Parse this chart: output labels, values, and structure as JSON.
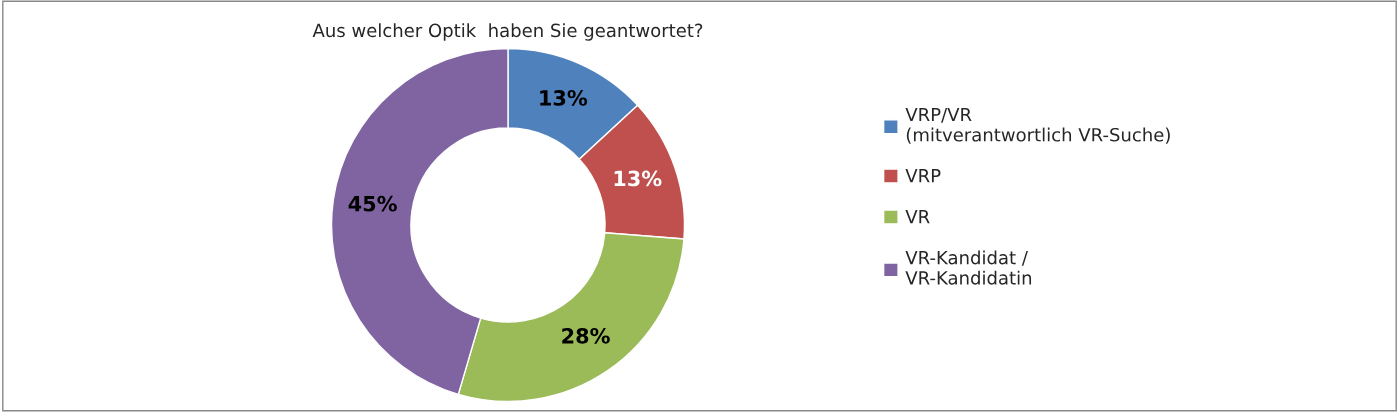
{
  "chart_data": {
    "type": "donut",
    "title": "Aus welcher Optik  haben Sie geantwortet?",
    "categories": [
      "VRP/VR\n(mitverantwortlich VR-Suche)",
      "VRP",
      "VR",
      "VR-Kandidat /\nVR-Kandidatin"
    ],
    "values": [
      13,
      13,
      28,
      45
    ],
    "colors": [
      "#4f81bd",
      "#c0504d",
      "#9bbb59",
      "#8064a2"
    ],
    "value_labels": [
      "13%",
      "13%",
      "28%",
      "45%"
    ],
    "legend": "right"
  }
}
